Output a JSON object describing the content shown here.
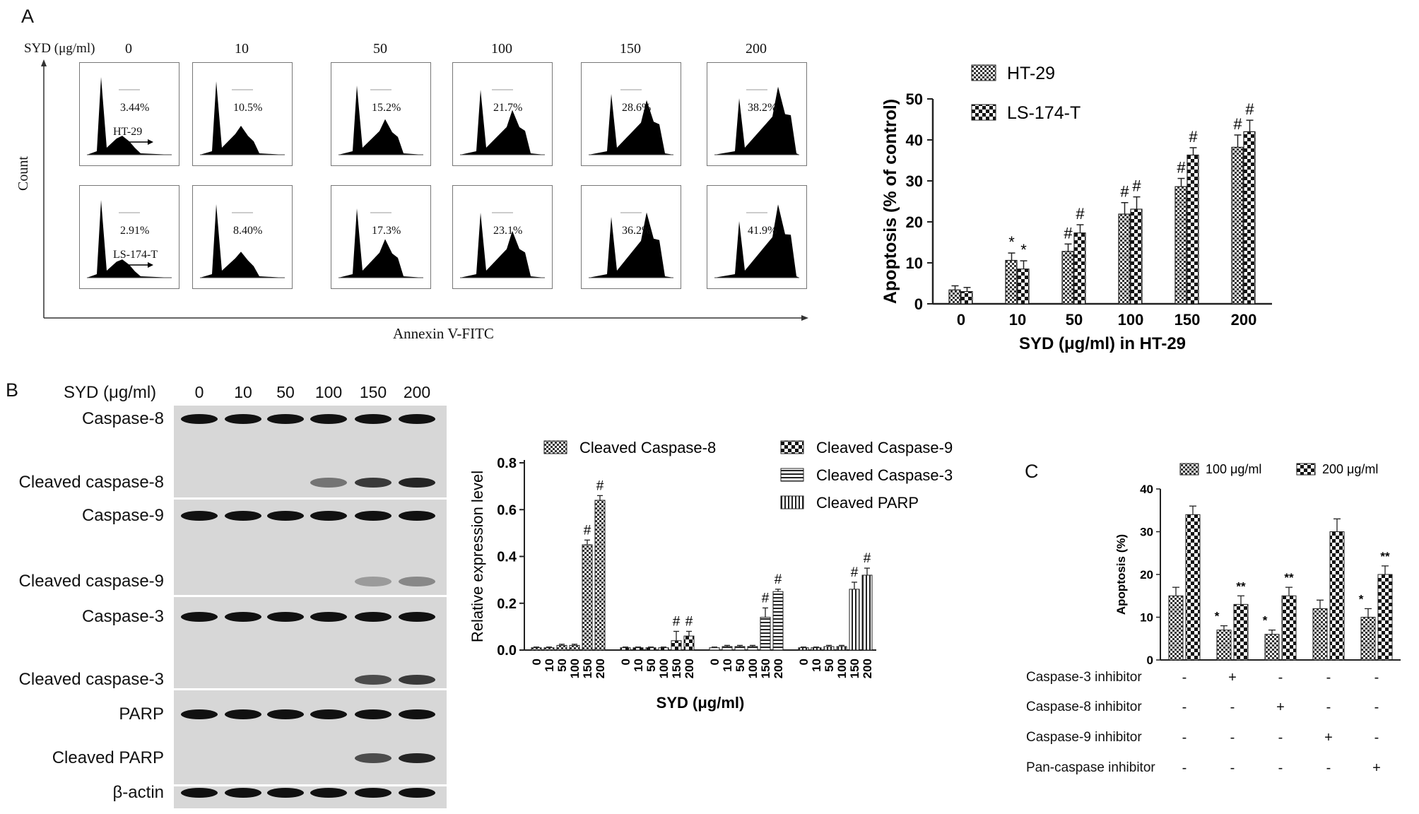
{
  "panel_labels": {
    "a": "A",
    "b": "B",
    "c": "C"
  },
  "panel_a": {
    "syd_label": "SYD (μg/ml)",
    "concentrations": [
      "0",
      "10",
      "50",
      "100",
      "150",
      "200"
    ],
    "y_axis_label": "Count",
    "x_axis_label": "Annexin V-FITC",
    "rows": [
      {
        "cell_line": "HT-29",
        "percentages": [
          "3.44%",
          "10.5%",
          "15.2%",
          "21.7%",
          "28.6%",
          "38.2%"
        ]
      },
      {
        "cell_line": "LS-174-T",
        "percentages": [
          "2.91%",
          "8.40%",
          "17.3%",
          "23.1%",
          "36.2%",
          "41.9%"
        ]
      }
    ]
  },
  "panel_b": {
    "syd_label": "SYD (μg/ml)",
    "concentrations": [
      "0",
      "10",
      "50",
      "100",
      "150",
      "200"
    ],
    "blot_rows": [
      "Caspase-8",
      "Cleaved caspase-8",
      "Caspase-9",
      "Cleaved caspase-9",
      "Caspase-3",
      "Cleaved caspase-3",
      "PARP",
      "Cleaved PARP",
      "β-actin"
    ]
  },
  "panel_c": {
    "treatments": [
      {
        "label": "Caspase-3 inhibitor",
        "signs": [
          "-",
          "+",
          "-",
          "-",
          "-"
        ]
      },
      {
        "label": "Caspase-8 inhibitor",
        "signs": [
          "-",
          "-",
          "+",
          "-",
          "-"
        ]
      },
      {
        "label": "Caspase-9 inhibitor",
        "signs": [
          "-",
          "-",
          "-",
          "+",
          "-"
        ]
      },
      {
        "label": "Pan-caspase inhibitor",
        "signs": [
          "-",
          "-",
          "-",
          "-",
          "+"
        ]
      }
    ]
  },
  "chart_data": [
    {
      "id": "apoptosis-a",
      "type": "bar",
      "xlabel": "SYD (μg/ml) in HT-29",
      "ylabel": "Apoptosis (% of control)",
      "ylim": [
        0,
        50
      ],
      "yticks": [
        "0",
        "10",
        "20",
        "30",
        "40",
        "50"
      ],
      "categories": [
        "0",
        "10",
        "50",
        "100",
        "150",
        "200"
      ],
      "legend_position": "top-left",
      "series": [
        {
          "name": "HT-29",
          "values": [
            3.4,
            10.6,
            12.8,
            21.9,
            28.6,
            38.2
          ],
          "errors": [
            1,
            1.8,
            1.8,
            2.8,
            2,
            3
          ],
          "marks": [
            "",
            "*",
            "#",
            "#",
            "#",
            "#"
          ]
        },
        {
          "name": "LS-174-T",
          "values": [
            3.0,
            8.5,
            17.3,
            23.1,
            36.3,
            42.0
          ],
          "errors": [
            1,
            2,
            2,
            3,
            1.8,
            2.8
          ],
          "marks": [
            "",
            "*",
            "#",
            "#",
            "#",
            "#"
          ]
        }
      ]
    },
    {
      "id": "relative-expression",
      "type": "bar",
      "xlabel": "SYD (μg/ml)",
      "ylabel": "Relative expression level",
      "ylim": [
        0,
        0.8
      ],
      "yticks": [
        "0.0",
        "0.2",
        "0.4",
        "0.6",
        "0.8"
      ],
      "legend_position": "top",
      "groups": [
        {
          "name": "Cleaved Caspase-8",
          "categories": [
            "0",
            "10",
            "50",
            "100",
            "150",
            "200"
          ],
          "values": [
            0.01,
            0.01,
            0.02,
            0.02,
            0.45,
            0.64
          ],
          "errors": [
            0.003,
            0.003,
            0.005,
            0.005,
            0.02,
            0.02
          ],
          "marks": [
            "",
            "",
            "",
            "",
            "#",
            "#"
          ]
        },
        {
          "name": "Cleaved Caspase-9",
          "categories": [
            "0",
            "10",
            "50",
            "100",
            "150",
            "200"
          ],
          "values": [
            0.01,
            0.01,
            0.01,
            0.01,
            0.04,
            0.06
          ],
          "errors": [
            0.003,
            0.003,
            0.003,
            0.003,
            0.04,
            0.02
          ],
          "marks": [
            "",
            "",
            "",
            "",
            "#",
            "#"
          ]
        },
        {
          "name": "Cleaved Caspase-3",
          "categories": [
            "0",
            "10",
            "50",
            "100",
            "150",
            "200"
          ],
          "values": [
            0.01,
            0.015,
            0.015,
            0.015,
            0.14,
            0.25
          ],
          "errors": [
            0.003,
            0.005,
            0.005,
            0.005,
            0.04,
            0.01
          ],
          "marks": [
            "",
            "",
            "",
            "",
            "#",
            "#"
          ]
        },
        {
          "name": "Cleaved PARP",
          "categories": [
            "0",
            "10",
            "50",
            "100",
            "150",
            "200"
          ],
          "values": [
            0.01,
            0.01,
            0.015,
            0.015,
            0.26,
            0.32
          ],
          "errors": [
            0.003,
            0.003,
            0.005,
            0.005,
            0.03,
            0.03
          ],
          "marks": [
            "",
            "",
            "",
            "",
            "#",
            "#"
          ]
        }
      ]
    },
    {
      "id": "apoptosis-c",
      "type": "bar",
      "ylabel": "Apoptosis (%)",
      "ylim": [
        0,
        40
      ],
      "yticks": [
        "0",
        "10",
        "20",
        "30",
        "40"
      ],
      "groups_count": 5,
      "legend_position": "top",
      "series": [
        {
          "name": "100 μg/ml",
          "values": [
            15,
            7,
            6,
            12,
            10
          ],
          "errors": [
            2,
            1,
            1,
            2,
            2
          ],
          "marks": [
            "",
            "*",
            "*",
            "",
            "*"
          ]
        },
        {
          "name": "200 μg/ml",
          "values": [
            34,
            13,
            15,
            30,
            20
          ],
          "errors": [
            2,
            2,
            2,
            3,
            2
          ],
          "marks": [
            "",
            "**",
            "**",
            "",
            "**"
          ]
        }
      ]
    }
  ]
}
